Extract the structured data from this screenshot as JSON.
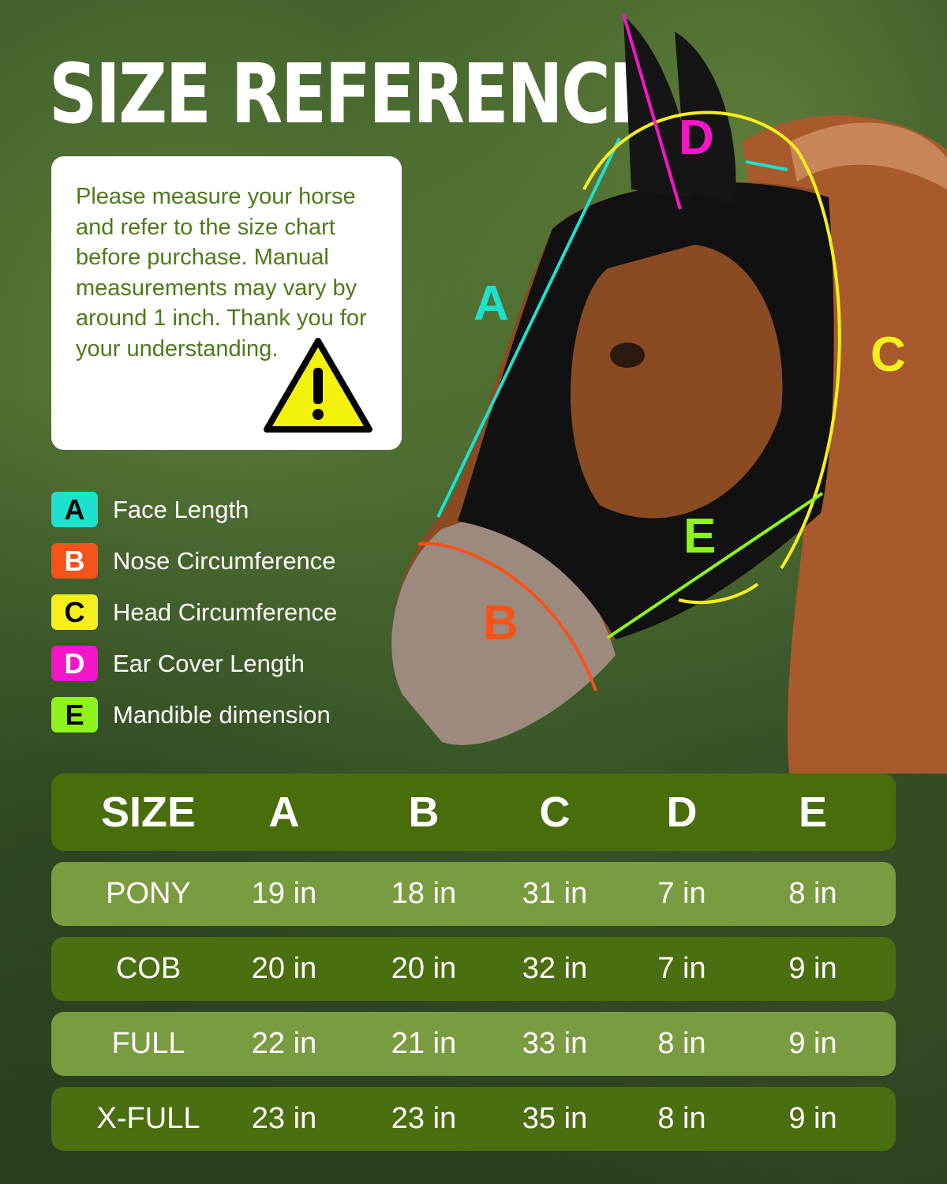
{
  "title": "SIZE REFERENCE",
  "notice": {
    "text": "Please measure your horse and refer to the size chart before purchase. Manual measurements may vary by around 1 inch. Thank you for your understanding.",
    "icon": "warning-triangle-icon"
  },
  "legend": [
    {
      "key": "A",
      "label": "Face Length",
      "color": "#1de0cf"
    },
    {
      "key": "B",
      "label": "Nose Circumference",
      "color": "#f5531a"
    },
    {
      "key": "C",
      "label": "Head Circumference",
      "color": "#f5f01c"
    },
    {
      "key": "D",
      "label": "Ear Cover Length",
      "color": "#f516c9"
    },
    {
      "key": "E",
      "label": "Mandible dimension",
      "color": "#8ef51c"
    }
  ],
  "table": {
    "headers": [
      "SIZE",
      "A",
      "B",
      "C",
      "D",
      "E"
    ],
    "rows": [
      [
        "PONY",
        "19 in",
        "18 in",
        "31 in",
        "7 in",
        "8 in"
      ],
      [
        "COB",
        "20 in",
        "20 in",
        "32 in",
        "7 in",
        "9 in"
      ],
      [
        "FULL",
        "22 in",
        "21 in",
        "33 in",
        "8 in",
        "9 in"
      ],
      [
        "X-FULL",
        "23 in",
        "23 in",
        "35 in",
        "8 in",
        "9 in"
      ]
    ],
    "colors": {
      "header": "#4a6d0c",
      "row_light": "#7a9c40",
      "row_dark": "#4b6e10"
    }
  }
}
